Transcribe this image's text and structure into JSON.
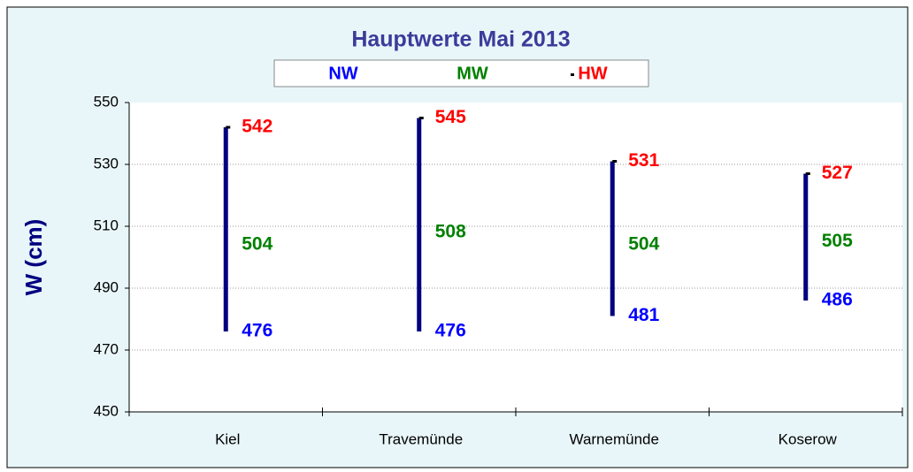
{
  "chart_data": {
    "type": "hilo",
    "title": "Hauptwerte Mai 2013",
    "y_label": "W (cm)",
    "categories": [
      "Kiel",
      "Travemünde",
      "Warnemünde",
      "Koserow"
    ],
    "series": [
      {
        "name": "NW",
        "color": "#0000ff",
        "values": [
          476,
          476,
          481,
          486
        ]
      },
      {
        "name": "MW",
        "color": "#008000",
        "values": [
          504,
          508,
          504,
          505
        ]
      },
      {
        "name": "HW",
        "color": "#ff0000",
        "values": [
          542,
          545,
          531,
          527
        ]
      }
    ],
    "range_color": "#000080",
    "marker_color": "#000000",
    "ylim": [
      450,
      550
    ],
    "yticks": [
      450,
      470,
      490,
      510,
      530,
      550
    ],
    "grid": true
  }
}
